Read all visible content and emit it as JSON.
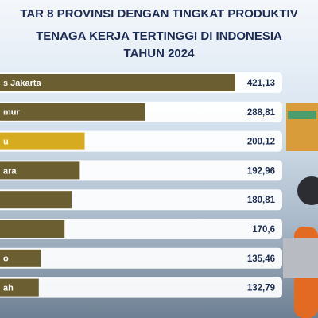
{
  "chart_data": {
    "type": "bar",
    "orientation": "horizontal",
    "title": [
      "TAR 8 PROVINSI DENGAN TINGKAT PRODUKTIV",
      "TENAGA KERJA TERTINGGI DI INDONESIA",
      "TAHUN 2024"
    ],
    "categories": [
      "s Jakarta",
      "mur",
      "u",
      "ara",
      null,
      null,
      "o",
      "ah"
    ],
    "values": [
      421.13,
      288.81,
      200.12,
      192.96,
      180.81,
      170.6,
      135.46,
      132.79
    ],
    "value_labels": [
      "421,13",
      "288,81",
      "200,12",
      "192,96",
      "180,81",
      "170,6",
      "135,46",
      "132,79"
    ],
    "colors": [
      "#6b5e30",
      "#6b5e30",
      "#d6ab1f",
      "#6b5e30",
      "#6b5e30",
      "#6b5e30",
      "#6b5e30",
      "#6b5e30"
    ]
  }
}
